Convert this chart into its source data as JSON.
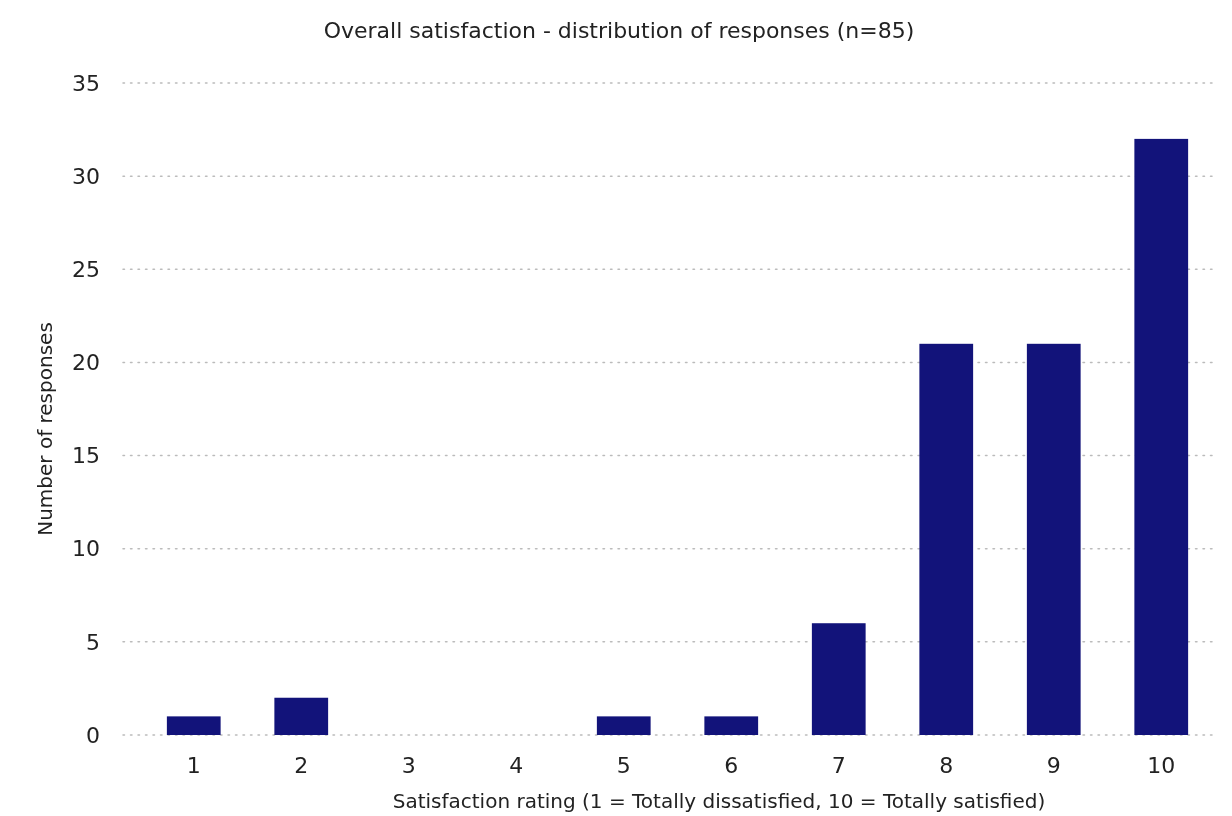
{
  "chart_data": {
    "type": "bar",
    "title": "Overall satisfaction - distribution of responses (n=85)",
    "xlabel": "Satisfaction rating (1 = Totally dissatisfied, 10 = Totally satisfied)",
    "ylabel": "Number of responses",
    "categories": [
      "1",
      "2",
      "3",
      "4",
      "5",
      "6",
      "7",
      "8",
      "9",
      "10"
    ],
    "values": [
      1,
      2,
      0,
      0,
      1,
      1,
      6,
      21,
      21,
      32
    ],
    "color": "#12137a",
    "ylim": [
      0,
      35
    ],
    "yticks": [
      0,
      5,
      10,
      15,
      20,
      25,
      30,
      35
    ],
    "grid": "y"
  }
}
